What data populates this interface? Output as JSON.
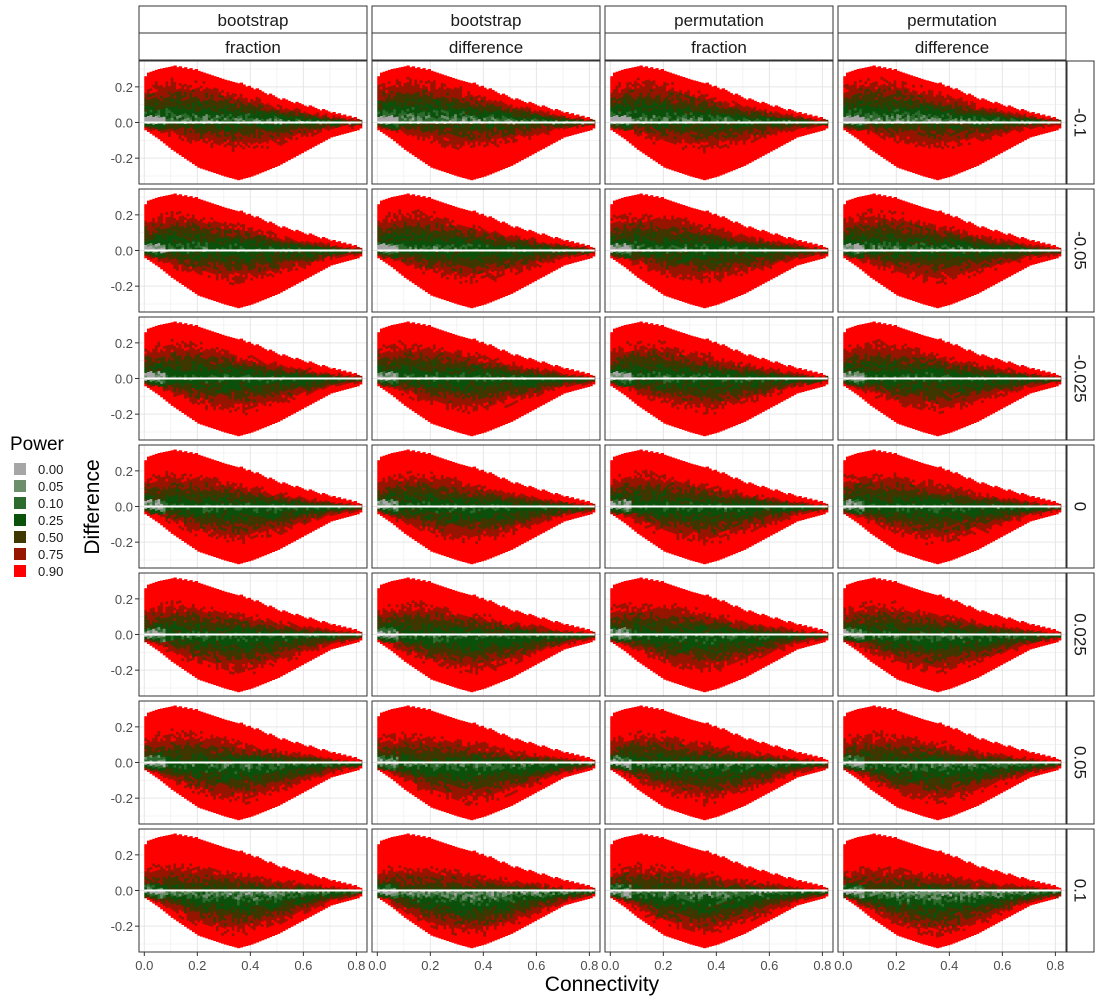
{
  "chart_data": {
    "type": "heatmap",
    "layout": "faceted grid (columns: method × statistic, rows: threshold)",
    "xlabel": "Connectivity",
    "ylabel": "Difference",
    "xlim": [
      -0.02,
      0.84
    ],
    "ylim": [
      -0.345,
      0.345
    ],
    "x_ticks": [
      0.0,
      0.2,
      0.4,
      0.6,
      0.8
    ],
    "x_tick_labels": [
      "0.0",
      "0.2",
      "0.4",
      "0.6",
      "0.8"
    ],
    "y_ticks": [
      -0.2,
      0.0,
      0.2
    ],
    "y_tick_labels": [
      "-0.2",
      "0.0",
      "0.2"
    ],
    "grid": true,
    "legend": {
      "title": "Power",
      "position": "left",
      "entries": [
        {
          "label": "0.00",
          "color": "#A6A6A6"
        },
        {
          "label": "0.05",
          "color": "#6B8F6B"
        },
        {
          "label": "0.10",
          "color": "#2D6A2D"
        },
        {
          "label": "0.25",
          "color": "#0B500B"
        },
        {
          "label": "0.50",
          "color": "#3F3600"
        },
        {
          "label": "0.75",
          "color": "#961500"
        },
        {
          "label": "0.90",
          "color": "#FF0000"
        }
      ]
    },
    "facet_columns": [
      {
        "method": "bootstrap",
        "statistic": "fraction"
      },
      {
        "method": "bootstrap",
        "statistic": "difference"
      },
      {
        "method": "permutation",
        "statistic": "fraction"
      },
      {
        "method": "permutation",
        "statistic": "difference"
      }
    ],
    "facet_rows": [
      "-0.1",
      "-0.05",
      "-0.025",
      "0",
      "0.025",
      "0.05",
      "0.1"
    ],
    "reference_line": {
      "y": 0,
      "color": "#FFFFFF"
    },
    "data_extent": {
      "x_range": [
        0.0,
        0.82
      ],
      "upper_envelope": [
        [
          0.0,
          0.26
        ],
        [
          0.05,
          0.29
        ],
        [
          0.1,
          0.31
        ],
        [
          0.2,
          0.29
        ],
        [
          0.3,
          0.24
        ],
        [
          0.4,
          0.19
        ],
        [
          0.5,
          0.13
        ],
        [
          0.6,
          0.09
        ],
        [
          0.7,
          0.05
        ],
        [
          0.8,
          0.02
        ],
        [
          0.82,
          0.01
        ]
      ],
      "lower_envelope": [
        [
          0.0,
          -0.04
        ],
        [
          0.05,
          -0.09
        ],
        [
          0.1,
          -0.15
        ],
        [
          0.2,
          -0.25
        ],
        [
          0.3,
          -0.3
        ],
        [
          0.35,
          -0.32
        ],
        [
          0.4,
          -0.3
        ],
        [
          0.5,
          -0.24
        ],
        [
          0.6,
          -0.16
        ],
        [
          0.7,
          -0.08
        ],
        [
          0.8,
          -0.04
        ],
        [
          0.82,
          -0.02
        ]
      ]
    }
  }
}
